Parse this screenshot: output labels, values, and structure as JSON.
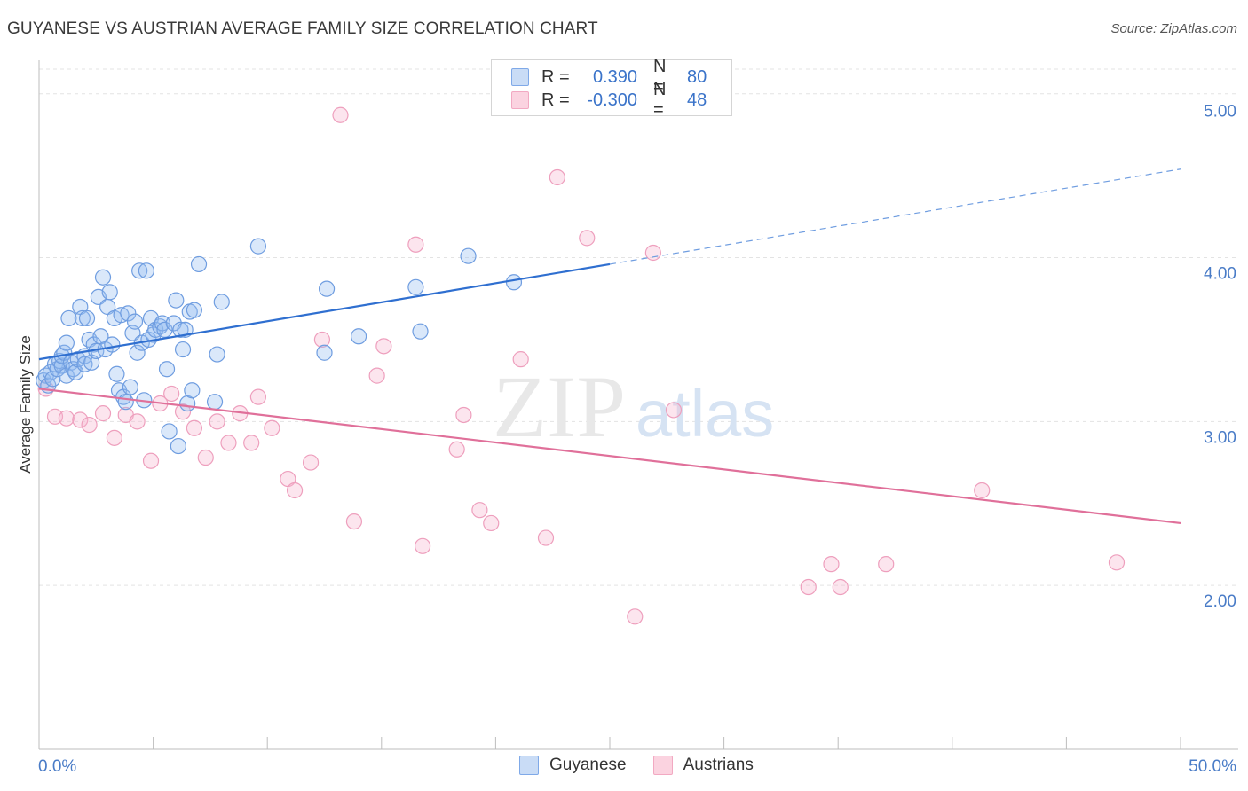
{
  "title": "GUYANESE VS AUSTRIAN AVERAGE FAMILY SIZE CORRELATION CHART",
  "source": "Source: ZipAtlas.com",
  "watermark": {
    "zip": "ZIP",
    "atlas": "atlas"
  },
  "legend": {
    "rows": [
      {
        "r_label": "R =",
        "r_value": "0.390",
        "n_label": "N =",
        "n_value": "80",
        "color": "#4a7cc7"
      },
      {
        "r_label": "R =",
        "r_value": "-0.300",
        "n_label": "N =",
        "n_value": "48",
        "color": "#e07a9f"
      }
    ]
  },
  "bottom_legend": [
    {
      "label": "Guyanese",
      "color": "#7fa9e8"
    },
    {
      "label": "Austrians",
      "color": "#f2a9c2"
    }
  ],
  "chart_data": {
    "type": "scatter",
    "title": "GUYANESE VS AUSTRIAN AVERAGE FAMILY SIZE CORRELATION CHART",
    "xlabel": "",
    "ylabel": "Average Family Size",
    "xlim": [
      0,
      50
    ],
    "ylim": [
      1.0,
      5.15
    ],
    "x_tick_labels": [
      "0.0%",
      "50.0%"
    ],
    "y_ticks": [
      2.0,
      3.0,
      4.0,
      5.0
    ],
    "y_tick_labels": [
      "2.00",
      "3.00",
      "4.00",
      "5.00"
    ],
    "grid": true,
    "series": [
      {
        "name": "Guyanese",
        "color": "#7fa9e8",
        "points": [
          [
            0.2,
            3.25
          ],
          [
            0.3,
            3.28
          ],
          [
            0.4,
            3.22
          ],
          [
            0.5,
            3.3
          ],
          [
            0.6,
            3.26
          ],
          [
            0.7,
            3.35
          ],
          [
            0.8,
            3.32
          ],
          [
            0.9,
            3.37
          ],
          [
            1.0,
            3.34
          ],
          [
            1.0,
            3.4
          ],
          [
            1.1,
            3.42
          ],
          [
            1.2,
            3.28
          ],
          [
            1.2,
            3.48
          ],
          [
            1.3,
            3.63
          ],
          [
            1.4,
            3.36
          ],
          [
            1.5,
            3.32
          ],
          [
            1.6,
            3.3
          ],
          [
            1.7,
            3.38
          ],
          [
            1.8,
            3.7
          ],
          [
            1.9,
            3.63
          ],
          [
            2.0,
            3.4
          ],
          [
            2.0,
            3.35
          ],
          [
            2.1,
            3.63
          ],
          [
            2.2,
            3.5
          ],
          [
            2.3,
            3.36
          ],
          [
            2.4,
            3.47
          ],
          [
            2.5,
            3.43
          ],
          [
            2.6,
            3.76
          ],
          [
            2.7,
            3.52
          ],
          [
            2.8,
            3.88
          ],
          [
            2.9,
            3.44
          ],
          [
            3.0,
            3.7
          ],
          [
            3.1,
            3.79
          ],
          [
            3.2,
            3.47
          ],
          [
            3.3,
            3.63
          ],
          [
            3.4,
            3.29
          ],
          [
            3.5,
            3.19
          ],
          [
            3.6,
            3.65
          ],
          [
            3.7,
            3.15
          ],
          [
            3.8,
            3.12
          ],
          [
            3.9,
            3.66
          ],
          [
            4.0,
            3.21
          ],
          [
            4.1,
            3.54
          ],
          [
            4.2,
            3.61
          ],
          [
            4.3,
            3.42
          ],
          [
            4.4,
            3.92
          ],
          [
            4.5,
            3.48
          ],
          [
            4.6,
            3.13
          ],
          [
            4.7,
            3.92
          ],
          [
            4.8,
            3.5
          ],
          [
            4.9,
            3.63
          ],
          [
            5.0,
            3.53
          ],
          [
            5.1,
            3.56
          ],
          [
            5.3,
            3.58
          ],
          [
            5.4,
            3.6
          ],
          [
            5.5,
            3.56
          ],
          [
            5.6,
            3.32
          ],
          [
            5.7,
            2.94
          ],
          [
            5.9,
            3.6
          ],
          [
            6.0,
            3.74
          ],
          [
            6.1,
            2.85
          ],
          [
            6.2,
            3.56
          ],
          [
            6.3,
            3.44
          ],
          [
            6.4,
            3.56
          ],
          [
            6.5,
            3.11
          ],
          [
            6.6,
            3.67
          ],
          [
            6.7,
            3.19
          ],
          [
            6.8,
            3.68
          ],
          [
            7.0,
            3.96
          ],
          [
            7.7,
            3.12
          ],
          [
            7.8,
            3.41
          ],
          [
            8.0,
            3.73
          ],
          [
            9.6,
            4.07
          ],
          [
            12.6,
            3.81
          ],
          [
            12.5,
            3.42
          ],
          [
            14.0,
            3.52
          ],
          [
            16.5,
            3.82
          ],
          [
            16.7,
            3.55
          ],
          [
            18.8,
            4.01
          ],
          [
            20.8,
            3.85
          ]
        ],
        "trendline": {
          "x": [
            0,
            25
          ],
          "y": [
            3.38,
            3.96
          ],
          "dashed_extension": {
            "x": [
              25,
              50
            ],
            "y": [
              3.96,
              4.54
            ]
          }
        }
      },
      {
        "name": "Austrians",
        "color": "#f2a9c2",
        "points": [
          [
            0.3,
            3.2
          ],
          [
            0.7,
            3.03
          ],
          [
            1.2,
            3.02
          ],
          [
            1.8,
            3.01
          ],
          [
            2.2,
            2.98
          ],
          [
            2.8,
            3.05
          ],
          [
            3.3,
            2.9
          ],
          [
            3.8,
            3.04
          ],
          [
            4.3,
            3.0
          ],
          [
            4.9,
            2.76
          ],
          [
            5.3,
            3.11
          ],
          [
            5.8,
            3.17
          ],
          [
            6.3,
            3.06
          ],
          [
            6.8,
            2.96
          ],
          [
            7.3,
            2.78
          ],
          [
            7.8,
            3.0
          ],
          [
            8.3,
            2.87
          ],
          [
            8.8,
            3.05
          ],
          [
            9.3,
            2.87
          ],
          [
            9.6,
            3.15
          ],
          [
            10.2,
            2.96
          ],
          [
            10.9,
            2.65
          ],
          [
            11.2,
            2.58
          ],
          [
            11.9,
            2.75
          ],
          [
            12.4,
            3.5
          ],
          [
            13.2,
            4.87
          ],
          [
            13.8,
            2.39
          ],
          [
            14.8,
            3.28
          ],
          [
            15.1,
            3.46
          ],
          [
            16.5,
            4.08
          ],
          [
            16.8,
            2.24
          ],
          [
            18.3,
            2.83
          ],
          [
            18.6,
            3.04
          ],
          [
            19.3,
            2.46
          ],
          [
            19.8,
            2.38
          ],
          [
            21.1,
            3.38
          ],
          [
            22.2,
            2.29
          ],
          [
            22.7,
            4.49
          ],
          [
            24.0,
            4.12
          ],
          [
            26.1,
            1.81
          ],
          [
            26.9,
            4.03
          ],
          [
            27.8,
            3.07
          ],
          [
            33.7,
            1.99
          ],
          [
            34.7,
            2.13
          ],
          [
            35.1,
            1.99
          ],
          [
            37.1,
            2.13
          ],
          [
            41.3,
            2.58
          ],
          [
            47.2,
            2.14
          ]
        ],
        "trendline": {
          "x": [
            0,
            50
          ],
          "y": [
            3.2,
            2.38
          ]
        }
      }
    ]
  }
}
